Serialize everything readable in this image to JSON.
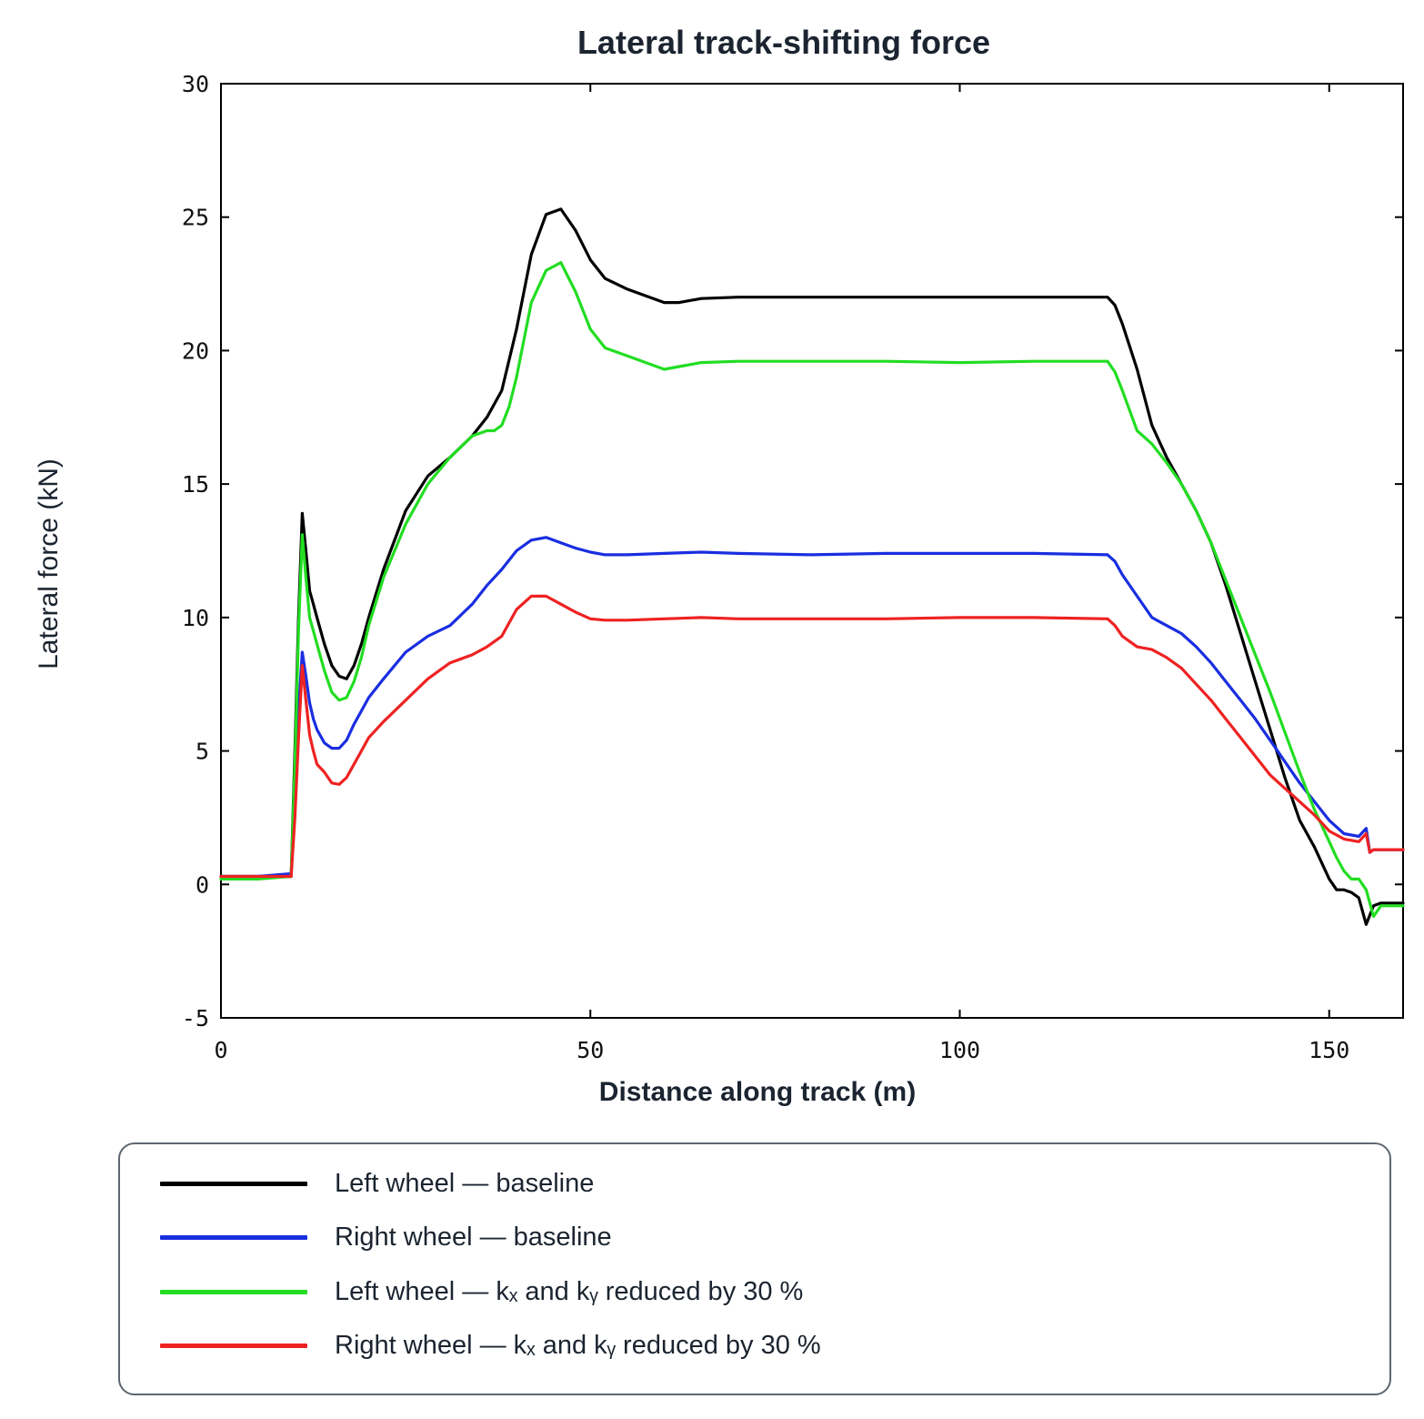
{
  "chart_data": {
    "type": "line",
    "title": "Lateral track-shifting force",
    "xlabel": "Distance along track (m)",
    "ylabel": "Lateral force (kN)",
    "xlim": [
      0,
      160
    ],
    "ylim": [
      -5,
      30
    ],
    "xticks": [
      0,
      50,
      100,
      150
    ],
    "yticks": [
      -5,
      0,
      5,
      10,
      15,
      20,
      25,
      30
    ],
    "grid": false,
    "legend_position": "bottom",
    "series": [
      {
        "name": "Left wheel — baseline",
        "color": "#000000",
        "x": [
          0,
          5,
          9.5,
          10,
          10.5,
          11,
          11.5,
          12,
          12.5,
          13,
          14,
          15,
          16,
          17,
          18,
          19,
          20,
          22,
          25,
          28,
          31,
          34,
          36,
          38,
          40,
          42,
          44,
          46,
          48,
          50,
          52,
          55,
          58,
          60,
          62,
          65,
          70,
          80,
          90,
          100,
          110,
          120,
          121,
          122,
          124,
          126,
          128,
          130,
          132,
          134,
          136,
          138,
          140,
          142,
          144,
          146,
          148,
          150,
          151,
          152,
          153,
          154,
          155,
          156,
          157,
          158,
          160
        ],
        "y": [
          0.3,
          0.3,
          0.3,
          5.0,
          10.0,
          13.9,
          12.5,
          11.0,
          10.5,
          10.0,
          9.0,
          8.2,
          7.8,
          7.7,
          8.2,
          9.0,
          10.0,
          11.8,
          14.0,
          15.3,
          16.0,
          16.8,
          17.5,
          18.5,
          20.8,
          23.6,
          25.1,
          25.3,
          24.5,
          23.4,
          22.7,
          22.3,
          22.0,
          21.8,
          21.8,
          21.95,
          22.0,
          22.0,
          22.0,
          22.0,
          22.0,
          22.0,
          21.7,
          21.0,
          19.3,
          17.2,
          16.0,
          15.0,
          14.0,
          12.8,
          11.2,
          9.4,
          7.6,
          5.8,
          4.0,
          2.4,
          1.4,
          0.2,
          -0.2,
          -0.2,
          -0.3,
          -0.5,
          -1.5,
          -0.8,
          -0.7,
          -0.7,
          -0.7
        ]
      },
      {
        "name": "Right wheel — baseline",
        "color": "#1a2ee0",
        "x": [
          0,
          5,
          9.5,
          10,
          10.5,
          11,
          11.5,
          12,
          12.5,
          13,
          14,
          15,
          16,
          17,
          18,
          19,
          20,
          22,
          25,
          28,
          31,
          34,
          36,
          38,
          40,
          42,
          44,
          46,
          48,
          50,
          52,
          55,
          60,
          65,
          70,
          80,
          90,
          100,
          110,
          120,
          121,
          122,
          124,
          126,
          128,
          130,
          132,
          134,
          136,
          138,
          140,
          142,
          144,
          146,
          148,
          150,
          152,
          154,
          155,
          155.5,
          156,
          157,
          158,
          160
        ],
        "y": [
          0.3,
          0.3,
          0.4,
          3.0,
          6.5,
          8.7,
          7.8,
          6.8,
          6.2,
          5.8,
          5.3,
          5.1,
          5.1,
          5.4,
          6.0,
          6.5,
          7.0,
          7.7,
          8.7,
          9.3,
          9.7,
          10.5,
          11.2,
          11.8,
          12.5,
          12.9,
          13.0,
          12.8,
          12.6,
          12.45,
          12.35,
          12.35,
          12.4,
          12.45,
          12.4,
          12.35,
          12.4,
          12.4,
          12.4,
          12.35,
          12.1,
          11.6,
          10.8,
          10.0,
          9.7,
          9.4,
          8.9,
          8.3,
          7.6,
          6.9,
          6.2,
          5.4,
          4.6,
          3.8,
          3.1,
          2.4,
          1.9,
          1.8,
          2.1,
          1.2,
          1.3,
          1.3,
          1.3,
          1.3
        ]
      },
      {
        "name": "Left wheel — kₓ and kᵧ reduced by 30 %",
        "color": "#22dd22",
        "x": [
          0,
          5,
          9.5,
          10,
          10.5,
          11,
          11.5,
          12,
          12.5,
          13,
          14,
          15,
          16,
          17,
          18,
          19,
          20,
          22,
          25,
          28,
          31,
          34,
          36,
          37,
          38,
          39,
          40,
          42,
          44,
          46,
          48,
          50,
          52,
          55,
          58,
          60,
          62,
          65,
          70,
          80,
          90,
          100,
          110,
          120,
          121,
          122,
          124,
          126,
          128,
          130,
          132,
          134,
          136,
          138,
          140,
          142,
          144,
          146,
          148,
          150,
          151,
          152,
          153,
          154,
          155,
          156,
          157,
          158,
          160
        ],
        "y": [
          0.2,
          0.2,
          0.3,
          4.5,
          9.5,
          13.1,
          11.5,
          10.0,
          9.5,
          9.0,
          8.0,
          7.2,
          6.9,
          7.0,
          7.6,
          8.5,
          9.7,
          11.5,
          13.5,
          15.0,
          16.0,
          16.8,
          17.0,
          17.0,
          17.2,
          17.9,
          19.0,
          21.8,
          23.0,
          23.3,
          22.2,
          20.8,
          20.1,
          19.8,
          19.5,
          19.3,
          19.4,
          19.55,
          19.6,
          19.6,
          19.6,
          19.55,
          19.6,
          19.6,
          19.2,
          18.5,
          17.0,
          16.5,
          15.8,
          15.0,
          14.0,
          12.8,
          11.4,
          10.0,
          8.6,
          7.2,
          5.7,
          4.2,
          2.8,
          1.6,
          1.0,
          0.5,
          0.2,
          0.2,
          -0.2,
          -1.2,
          -0.8,
          -0.8,
          -0.8
        ]
      },
      {
        "name": "Right wheel — kₓ and kᵧ reduced by 30 %",
        "color": "#ee2222",
        "x": [
          0,
          5,
          9.5,
          10,
          10.5,
          11,
          11.5,
          12,
          12.5,
          13,
          14,
          15,
          16,
          17,
          18,
          19,
          20,
          22,
          25,
          28,
          31,
          34,
          36,
          38,
          40,
          42,
          44,
          46,
          48,
          50,
          52,
          55,
          60,
          65,
          70,
          80,
          90,
          100,
          110,
          120,
          121,
          122,
          124,
          126,
          128,
          130,
          132,
          134,
          136,
          138,
          140,
          142,
          144,
          146,
          148,
          150,
          152,
          154,
          155,
          155.5,
          156,
          157,
          158,
          160
        ],
        "y": [
          0.3,
          0.3,
          0.3,
          2.5,
          5.5,
          8.2,
          6.9,
          5.6,
          5.0,
          4.5,
          4.2,
          3.8,
          3.75,
          4.0,
          4.5,
          5.0,
          5.5,
          6.1,
          6.9,
          7.7,
          8.3,
          8.6,
          8.9,
          9.3,
          10.3,
          10.8,
          10.8,
          10.5,
          10.2,
          9.95,
          9.9,
          9.9,
          9.95,
          10.0,
          9.95,
          9.95,
          9.95,
          10.0,
          10.0,
          9.95,
          9.7,
          9.3,
          8.9,
          8.8,
          8.5,
          8.1,
          7.5,
          6.9,
          6.2,
          5.5,
          4.8,
          4.1,
          3.6,
          3.1,
          2.6,
          2.0,
          1.7,
          1.6,
          1.9,
          1.2,
          1.3,
          1.3,
          1.3,
          1.3
        ]
      }
    ]
  },
  "legend": {
    "items": [
      {
        "label": "Left wheel — baseline",
        "color": "#000000"
      },
      {
        "label": "Right wheel — baseline",
        "color": "#1a2ee0"
      },
      {
        "label": "Left wheel — kₓ and kᵧ reduced by 30 %",
        "color": "#22dd22"
      },
      {
        "label": "Right wheel — kₓ and kᵧ reduced by 30 %",
        "color": "#ee2222"
      }
    ]
  }
}
